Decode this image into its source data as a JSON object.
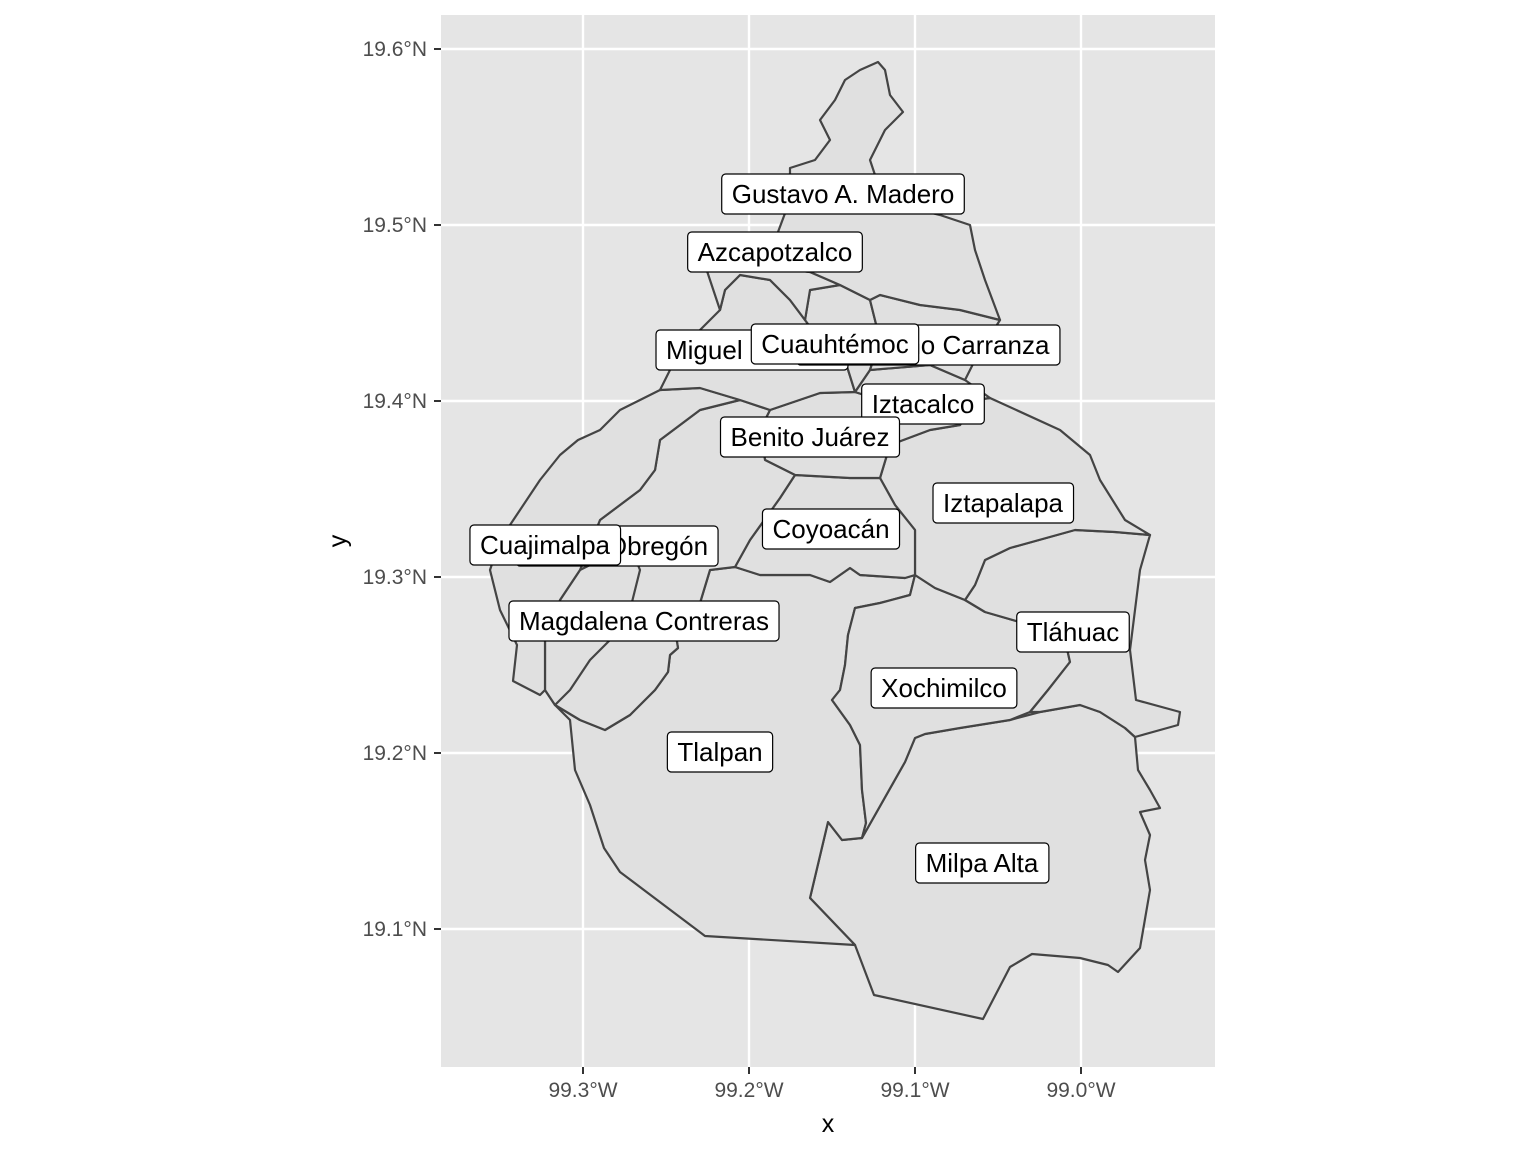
{
  "map": {
    "xlabel": "x",
    "ylabel": "y",
    "x_ticks": [
      "99.3°W",
      "99.2°W",
      "99.1°W",
      "99.0°W"
    ],
    "y_ticks": [
      "19.1°N",
      "19.2°N",
      "19.3°N",
      "19.4°N",
      "19.5°N",
      "19.6°N"
    ],
    "panel_color": "#e5e5e5",
    "region_fill": "#e0e0e0",
    "boundary_color": "#444444",
    "grid": true,
    "regions": [
      "Gustavo A. Madero",
      "Azcapotzalco",
      "Miguel Hidalgo",
      "Cuauhtémoc",
      "Venustiano Carranza",
      "Iztacalco",
      "Benito Juárez",
      "Iztapalapa",
      "Coyoacán",
      "Álvaro Obregón",
      "Cuajimalpa",
      "Magdalena Contreras",
      "Tláhuac",
      "Xochimilco",
      "Tlalpan",
      "Milpa Alta"
    ]
  }
}
